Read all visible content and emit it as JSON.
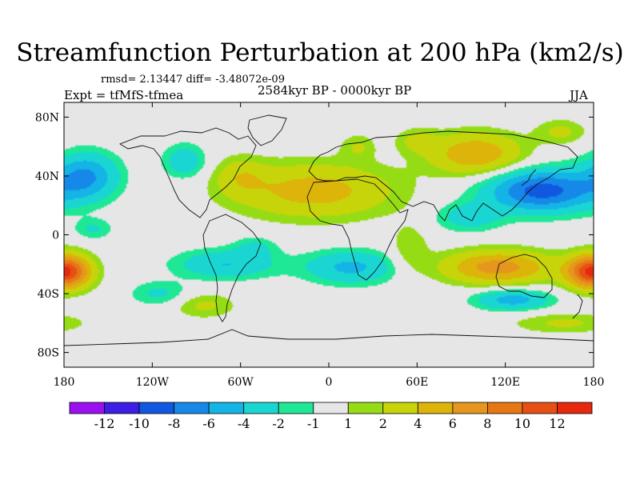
{
  "chart_data": {
    "type": "heatmap",
    "title": "Streamfunction Perturbation at 200 hPa (km2/s)",
    "stats_text": "rmsd= 2.13447  diff= -3.48072e-09",
    "experiment_text": "Expt = tfMfS-tfmea",
    "period_text": "2584kyr BP - 0000kyr BP",
    "season_text": "JJA",
    "x_range": [
      -180,
      180
    ],
    "y_range": [
      -90,
      90
    ],
    "x_ticks": [
      {
        "value": -180,
        "label": "180"
      },
      {
        "value": -120,
        "label": "120W"
      },
      {
        "value": -60,
        "label": "60W"
      },
      {
        "value": 0,
        "label": "0"
      },
      {
        "value": 60,
        "label": "60E"
      },
      {
        "value": 120,
        "label": "120E"
      },
      {
        "value": 180,
        "label": "180"
      }
    ],
    "y_ticks": [
      {
        "value": 80,
        "label": "80N"
      },
      {
        "value": 40,
        "label": "40N"
      },
      {
        "value": 0,
        "label": "0"
      },
      {
        "value": -40,
        "label": "40S"
      },
      {
        "value": -80,
        "label": "80S"
      }
    ],
    "colorbar": {
      "boundaries": [
        -14,
        -12,
        -10,
        -8,
        -6,
        -4,
        -2,
        -1,
        1,
        2,
        4,
        6,
        8,
        10,
        12,
        14
      ],
      "colors": [
        "#9a10f0",
        "#3c1ee6",
        "#1058e0",
        "#1688e8",
        "#14b4e6",
        "#1ad6d2",
        "#1ee896",
        "#e6e6e6",
        "#96dc14",
        "#c8d40a",
        "#dcb40a",
        "#e6961e",
        "#e67814",
        "#e65014",
        "#e6280c"
      ],
      "labels": [
        "-12",
        "-10",
        "-8",
        "-6",
        "-4",
        "-2",
        "-1",
        "1",
        "2",
        "4",
        "6",
        "8",
        "10",
        "12"
      ]
    },
    "anomalies": [
      {
        "lon": -10,
        "lat": 30,
        "amp": 5.0,
        "sx": 38,
        "sy": 13
      },
      {
        "lon": -60,
        "lat": 40,
        "amp": 2.6,
        "sx": 12,
        "sy": 9
      },
      {
        "lon": 20,
        "lat": 60,
        "amp": 2.0,
        "sx": 8,
        "sy": 6
      },
      {
        "lon": 100,
        "lat": 55,
        "amp": 5.8,
        "sx": 22,
        "sy": 10
      },
      {
        "lon": 158,
        "lat": 70,
        "amp": 2.4,
        "sx": 12,
        "sy": 6
      },
      {
        "lon": 60,
        "lat": 64,
        "amp": 2.2,
        "sx": 10,
        "sy": 6
      },
      {
        "lon": 145,
        "lat": 30,
        "amp": -9.0,
        "sx": 26,
        "sy": 10
      },
      {
        "lon": 95,
        "lat": 12,
        "amp": -3.0,
        "sx": 16,
        "sy": 7
      },
      {
        "lon": -165,
        "lat": 40,
        "amp": -6.0,
        "sx": 15,
        "sy": 11
      },
      {
        "lon": -98,
        "lat": 50,
        "amp": -3.6,
        "sx": 10,
        "sy": 8
      },
      {
        "lon": -160,
        "lat": 4,
        "amp": -2.2,
        "sx": 9,
        "sy": 5
      },
      {
        "lon": -70,
        "lat": -20,
        "amp": -4.0,
        "sx": 24,
        "sy": 7
      },
      {
        "lon": 15,
        "lat": -22,
        "amp": -4.5,
        "sx": 22,
        "sy": 8
      },
      {
        "lon": -115,
        "lat": -40,
        "amp": -2.4,
        "sx": 14,
        "sy": 6
      },
      {
        "lon": -50,
        "lat": -8,
        "amp": -2.2,
        "sx": 10,
        "sy": 5
      },
      {
        "lon": 115,
        "lat": -22,
        "amp": 7.0,
        "sx": 26,
        "sy": 8
      },
      {
        "lon": 178,
        "lat": -25,
        "amp": 6.5,
        "sx": 12,
        "sy": 8
      },
      {
        "lon": -178,
        "lat": -25,
        "amp": 6.5,
        "sx": 12,
        "sy": 8
      },
      {
        "lon": 125,
        "lat": -44,
        "amp": -5.0,
        "sx": 18,
        "sy": 5
      },
      {
        "lon": -85,
        "lat": -48,
        "amp": 2.4,
        "sx": 15,
        "sy": 6
      },
      {
        "lon": 160,
        "lat": -60,
        "amp": 2.3,
        "sx": 25,
        "sy": 5
      },
      {
        "lon": 55,
        "lat": -10,
        "amp": 2.0,
        "sx": 9,
        "sy": 12
      }
    ]
  }
}
